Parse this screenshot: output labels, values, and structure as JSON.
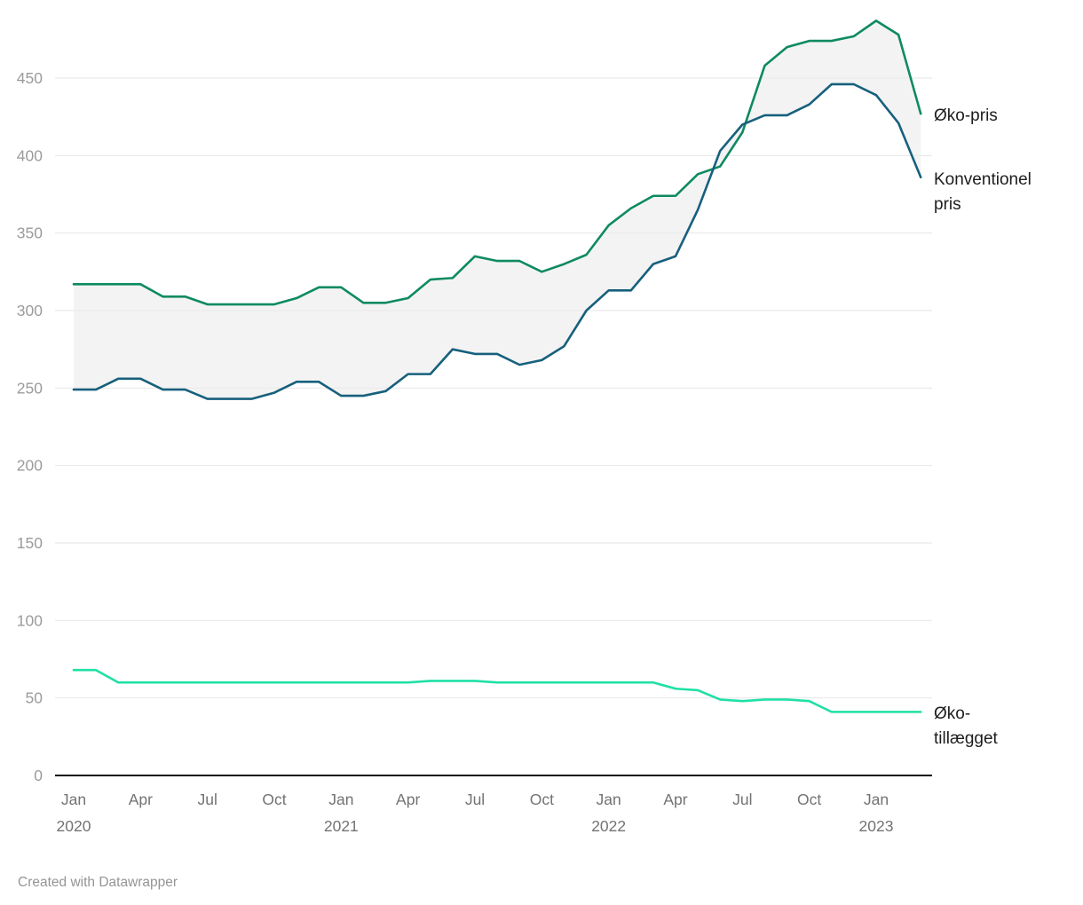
{
  "chart_data": {
    "type": "line",
    "x": [
      "2020-01",
      "2020-02",
      "2020-03",
      "2020-04",
      "2020-05",
      "2020-06",
      "2020-07",
      "2020-08",
      "2020-09",
      "2020-10",
      "2020-11",
      "2020-12",
      "2021-01",
      "2021-02",
      "2021-03",
      "2021-04",
      "2021-05",
      "2021-06",
      "2021-07",
      "2021-08",
      "2021-09",
      "2021-10",
      "2021-11",
      "2021-12",
      "2022-01",
      "2022-02",
      "2022-03",
      "2022-04",
      "2022-05",
      "2022-06",
      "2022-07",
      "2022-08",
      "2022-09",
      "2022-10",
      "2022-11",
      "2022-12",
      "2023-01",
      "2023-02",
      "2023-03"
    ],
    "series": [
      {
        "name": "Øko-pris",
        "color": "#0e8a62",
        "values": [
          317,
          317,
          317,
          317,
          309,
          309,
          304,
          304,
          304,
          304,
          308,
          315,
          315,
          305,
          305,
          308,
          320,
          321,
          335,
          332,
          332,
          325,
          330,
          336,
          355,
          366,
          374,
          374,
          388,
          393,
          415,
          458,
          470,
          474,
          474,
          477,
          487,
          478,
          427
        ]
      },
      {
        "name": "Konventionel pris",
        "color": "#17607d",
        "values": [
          249,
          249,
          256,
          256,
          249,
          249,
          243,
          243,
          243,
          247,
          254,
          254,
          245,
          245,
          248,
          259,
          259,
          275,
          272,
          272,
          265,
          268,
          277,
          300,
          313,
          313,
          330,
          335,
          365,
          403,
          420,
          426,
          426,
          433,
          446,
          446,
          439,
          421,
          386
        ]
      },
      {
        "name": "Øko-tillægget",
        "color": "#1fe0a5",
        "values": [
          68,
          68,
          60,
          60,
          60,
          60,
          60,
          60,
          60,
          60,
          60,
          60,
          60,
          60,
          60,
          60,
          61,
          61,
          61,
          60,
          60,
          60,
          60,
          60,
          60,
          60,
          60,
          56,
          55,
          49,
          48,
          49,
          49,
          48,
          41,
          41,
          41,
          41,
          41
        ]
      }
    ],
    "band_between_series": [
      "Øko-pris",
      "Konventionel pris"
    ],
    "band_color": "#ebebeb",
    "ylim": [
      0,
      490
    ],
    "yticks": [
      0,
      50,
      100,
      150,
      200,
      250,
      300,
      350,
      400,
      450
    ],
    "xticks": [
      {
        "i": 0,
        "label": "Jan",
        "year": "2020"
      },
      {
        "i": 3,
        "label": "Apr"
      },
      {
        "i": 6,
        "label": "Jul"
      },
      {
        "i": 9,
        "label": "Oct"
      },
      {
        "i": 12,
        "label": "Jan",
        "year": "2021"
      },
      {
        "i": 15,
        "label": "Apr"
      },
      {
        "i": 18,
        "label": "Jul"
      },
      {
        "i": 21,
        "label": "Oct"
      },
      {
        "i": 24,
        "label": "Jan",
        "year": "2022"
      },
      {
        "i": 27,
        "label": "Apr"
      },
      {
        "i": 30,
        "label": "Jul"
      },
      {
        "i": 33,
        "label": "Oct"
      },
      {
        "i": 36,
        "label": "Jan",
        "year": "2023"
      }
    ],
    "grid": true,
    "legend_position": "right-inline-labels",
    "colors": {
      "grid_line": "#e6e6e6",
      "axis_line": "#0b0b0b",
      "tick_label": "#9b9b9b",
      "x_tick_label": "#737373"
    }
  },
  "labels": {
    "oko_pris": "Øko-pris",
    "konventionel_pris": "Konventionel pris",
    "oko_tillaegget": "Øko-tillægget"
  },
  "footer": {
    "credit": "Created with Datawrapper"
  }
}
